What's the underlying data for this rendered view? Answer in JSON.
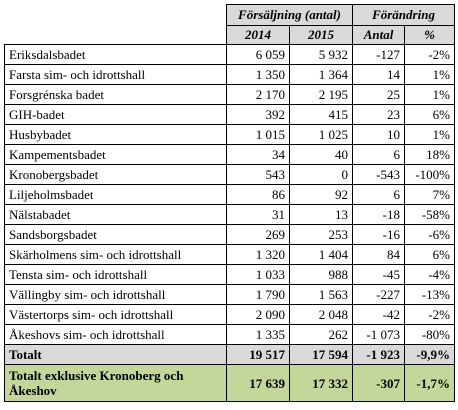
{
  "header": {
    "group_sales": "Försäljning (antal)",
    "group_change": "Förändring",
    "col_2014": "2014",
    "col_2015": "2015",
    "col_antal": "Antal",
    "col_pct": "%"
  },
  "rows": [
    {
      "name": "Eriksdalsbadet",
      "y2014": "6 059",
      "y2015": "5 932",
      "antal": "-127",
      "pct": "-2%"
    },
    {
      "name": "Farsta sim- och idrottshall",
      "y2014": "1 350",
      "y2015": "1 364",
      "antal": "14",
      "pct": "1%"
    },
    {
      "name": "Forsgrénska badet",
      "y2014": "2 170",
      "y2015": "2 195",
      "antal": "25",
      "pct": "1%"
    },
    {
      "name": "GIH-badet",
      "y2014": "392",
      "y2015": "415",
      "antal": "23",
      "pct": "6%"
    },
    {
      "name": "Husbybadet",
      "y2014": "1 015",
      "y2015": "1 025",
      "antal": "10",
      "pct": "1%"
    },
    {
      "name": "Kampementsbadet",
      "y2014": "34",
      "y2015": "40",
      "antal": "6",
      "pct": "18%"
    },
    {
      "name": "Kronobergsbadet",
      "y2014": "543",
      "y2015": "0",
      "antal": "-543",
      "pct": "-100%"
    },
    {
      "name": "Liljeholmsbadet",
      "y2014": "86",
      "y2015": "92",
      "antal": "6",
      "pct": "7%"
    },
    {
      "name": "Nälstabadet",
      "y2014": "31",
      "y2015": "13",
      "antal": "-18",
      "pct": "-58%"
    },
    {
      "name": "Sandsborgsbadet",
      "y2014": "269",
      "y2015": "253",
      "antal": "-16",
      "pct": "-6%"
    },
    {
      "name": "Skärholmens sim- och idrottshall",
      "y2014": "1 320",
      "y2015": "1 404",
      "antal": "84",
      "pct": "6%"
    },
    {
      "name": "Tensta sim- och idrottshall",
      "y2014": "1 033",
      "y2015": "988",
      "antal": "-45",
      "pct": "-4%"
    },
    {
      "name": "Vällingby sim- och idrottshall",
      "y2014": "1 790",
      "y2015": "1 563",
      "antal": "-227",
      "pct": "-13%"
    },
    {
      "name": "Västertorps sim- och idrottshall",
      "y2014": "2 090",
      "y2015": "2 048",
      "antal": "-42",
      "pct": "-2%"
    },
    {
      "name": "Åkeshovs sim- och idrottshall",
      "y2014": "1 335",
      "y2015": "262",
      "antal": "-1 073",
      "pct": "-80%"
    }
  ],
  "total": {
    "name": "Totalt",
    "y2014": "19 517",
    "y2015": "17 594",
    "antal": "-1 923",
    "pct": "-9,9%"
  },
  "total_excl": {
    "name": "Totalt exklusive Kronoberg och Åkeshov",
    "y2014": "17 639",
    "y2015": "17 332",
    "antal": "-307",
    "pct": "-1,7%"
  },
  "colors": {
    "header_bg": "#d9d9d9",
    "total_bg": "#d9d9d9",
    "total_excl_bg": "#c4d79b",
    "border": "#000000"
  }
}
